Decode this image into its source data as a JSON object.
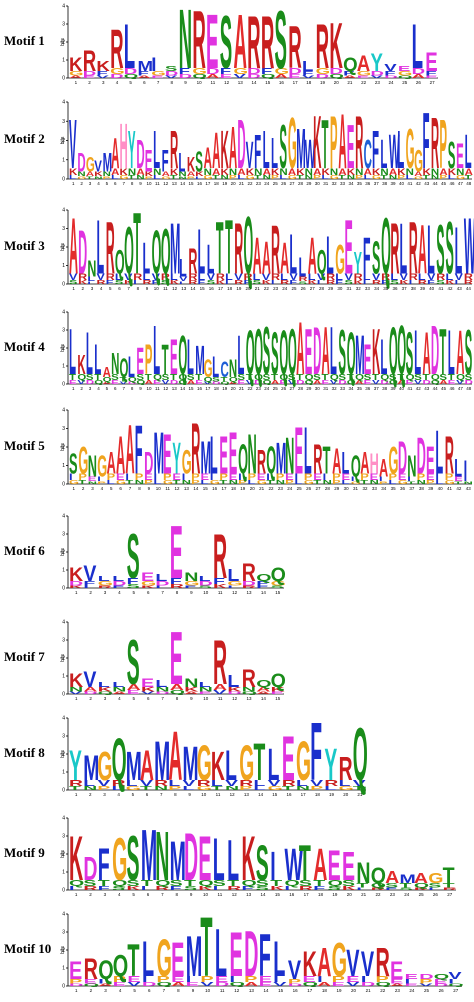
{
  "colors": {
    "A": "#e32b2b",
    "C": "#1e5fd6",
    "D": "#e033e0",
    "E": "#e033e0",
    "F": "#1a2fcc",
    "G": "#f0a41e",
    "H": "#ff8fc6",
    "I": "#1a2fcc",
    "K": "#c81e1e",
    "L": "#1a2fcc",
    "M": "#1a2fcc",
    "N": "#1a8c1a",
    "P": "#f0a41e",
    "Q": "#1a8c1a",
    "R": "#c81e1e",
    "S": "#1a8c1a",
    "T": "#1a8c1a",
    "V": "#1a2fcc",
    "W": "#1a2fcc",
    "Y": "#19c8c8"
  },
  "axis": {
    "y_ticks": [
      "0",
      "1",
      "2",
      "3",
      "4"
    ],
    "y_label": "bits"
  },
  "motifs": [
    {
      "label": "Motif  1",
      "top": 0,
      "height": 92,
      "width": 382,
      "consensus": "KRKRLMISNRESARRSRLRKQAYVELE",
      "heights": [
        1.2,
        1.6,
        1.0,
        2.8,
        3.1,
        1.0,
        1.2,
        0.6,
        4.0,
        3.9,
        3.7,
        3.6,
        3.7,
        3.6,
        3.6,
        3.9,
        3.0,
        1.0,
        3.1,
        3.2,
        1.2,
        1.3,
        1.4,
        0.8,
        0.6,
        3.1,
        1.5
      ]
    },
    {
      "label": "Motif  2",
      "top": 96,
      "height": 97,
      "width": 468,
      "consensus": "VDGVMAHYDELFRLKSAAKADVFLLSGMWKTPAERCFLWLGGFRPSEL",
      "heights": [
        3.2,
        1.4,
        1.2,
        1.0,
        1.4,
        2.2,
        3.0,
        2.6,
        2.1,
        1.6,
        2.6,
        1.6,
        2.6,
        1.4,
        1.2,
        1.5,
        1.7,
        2.5,
        2.6,
        2.8,
        3.2,
        2.0,
        2.4,
        2.6,
        2.2,
        2.9,
        3.3,
        2.7,
        2.1,
        3.4,
        3.2,
        3.4,
        3.5,
        2.9,
        3.4,
        2.1,
        2.6,
        2.1,
        2.4,
        2.6,
        2.7,
        1.6,
        3.6,
        3.3,
        3.2,
        2.0,
        1.9,
        2.4
      ]
    },
    {
      "label": "Motif  3",
      "top": 204,
      "height": 94,
      "width": 468,
      "consensus": "ADNLRQQTLQQMLRLLTTRQAARALLAQLGEYFSQRLRALSSLW",
      "heights": [
        3.7,
        3.0,
        1.3,
        3.6,
        3.5,
        1.9,
        3.2,
        4.0,
        2.3,
        3.0,
        3.1,
        3.4,
        1.4,
        2.0,
        3.1,
        2.2,
        3.5,
        3.6,
        3.4,
        3.8,
        2.6,
        2.4,
        3.3,
        2.3,
        2.8,
        1.5,
        2.6,
        1.9,
        2.7,
        2.2,
        3.6,
        1.8,
        2.6,
        2.4,
        3.7,
        3.4,
        3.4,
        3.5,
        3.3,
        3.3,
        3.3,
        3.5,
        3.2,
        3.7
      ]
    },
    {
      "label": "Motif  4",
      "top": 306,
      "height": 92,
      "width": 468,
      "consensus": "LKLLANQLEPLTEQLMGLCNLQQSSQQAEDALSQMEKLQQSLADTLAS",
      "heights": [
        3.2,
        1.7,
        3.0,
        2.3,
        1.0,
        1.8,
        1.5,
        1.6,
        2.1,
        2.3,
        3.4,
        2.3,
        2.6,
        2.8,
        2.6,
        2.2,
        1.4,
        1.6,
        1.3,
        1.4,
        2.8,
        3.1,
        3.2,
        3.3,
        3.0,
        3.1,
        3.2,
        3.6,
        3.2,
        3.3,
        3.3,
        3.3,
        3.1,
        3.0,
        2.8,
        2.3,
        3.2,
        2.6,
        3.3,
        3.4,
        3.0,
        3.1,
        3.0,
        3.4,
        3.2,
        3.1,
        3.1,
        3.1
      ]
    },
    {
      "label": "Motif  5",
      "top": 404,
      "height": 94,
      "width": 468,
      "consensus": "SGNGAAAFDMEYGRMLEEQNRQMNELRTALQAHAGDNDELRLI",
      "heights": [
        1.7,
        2.1,
        1.6,
        1.6,
        1.8,
        2.7,
        3.3,
        3.3,
        1.8,
        2.9,
        2.8,
        2.3,
        1.9,
        3.4,
        2.4,
        2.7,
        2.7,
        2.9,
        2.2,
        2.8,
        1.9,
        2.1,
        2.3,
        2.6,
        3.2,
        3.2,
        2.2,
        2.1,
        2.0,
        1.8,
        1.6,
        1.8,
        1.7,
        1.4,
        2.1,
        2.4,
        1.6,
        2.6,
        2.1,
        3.0,
        2.7,
        1.4,
        1.3
      ]
    },
    {
      "label": "Motif  6",
      "top": 510,
      "height": 92,
      "width": 228,
      "consensus": "KVLLSELENLRLRQQ",
      "heights": [
        1.2,
        1.3,
        0.4,
        0.5,
        3.1,
        0.9,
        0.8,
        3.6,
        0.9,
        0.7,
        3.1,
        1.1,
        1.4,
        0.8,
        1.2
      ]
    },
    {
      "label": "Motif  7",
      "top": 616,
      "height": 92,
      "width": 228,
      "consensus": "KVLLSELENLRLRQQ",
      "heights": [
        1.2,
        1.3,
        0.4,
        0.5,
        3.1,
        0.9,
        0.8,
        3.6,
        0.9,
        0.7,
        3.1,
        1.1,
        1.4,
        0.8,
        1.2
      ]
    },
    {
      "label": "Motif  8",
      "top": 712,
      "height": 92,
      "width": 310,
      "consensus": "YMGQMAMAMGKLGTLEGFYRQ",
      "heights": [
        2.3,
        2.0,
        2.2,
        3.0,
        2.2,
        2.3,
        2.8,
        3.4,
        2.5,
        2.6,
        2.2,
        2.3,
        2.6,
        2.7,
        2.4,
        3.1,
        2.8,
        3.9,
        2.4,
        1.9,
        3.6
      ]
    },
    {
      "label": "Motif  9",
      "top": 812,
      "height": 92,
      "width": 400,
      "consensus": "KDFGSMNMDELLKSIWTAEENQAMAGT",
      "heights": [
        3.1,
        1.9,
        2.4,
        3.0,
        3.1,
        3.5,
        3.4,
        2.8,
        3.3,
        3.1,
        3.0,
        2.9,
        3.1,
        2.6,
        2.2,
        2.4,
        2.6,
        2.4,
        2.3,
        2.2,
        1.6,
        1.3,
        1.1,
        0.9,
        1.0,
        1.0,
        1.3
      ]
    },
    {
      "label": "Motif  10",
      "top": 908,
      "height": 92,
      "width": 406,
      "consensus": "ERQQTLGEMTLEDFLVKAGVVREEDQV",
      "heights": [
        1.4,
        1.6,
        1.5,
        1.8,
        2.4,
        2.6,
        2.7,
        2.5,
        2.9,
        4.0,
        3.3,
        3.1,
        3.2,
        3.0,
        2.6,
        1.5,
        2.0,
        2.2,
        2.5,
        2.1,
        2.0,
        2.2,
        1.4,
        0.6,
        0.5,
        0.5,
        0.8
      ]
    }
  ]
}
